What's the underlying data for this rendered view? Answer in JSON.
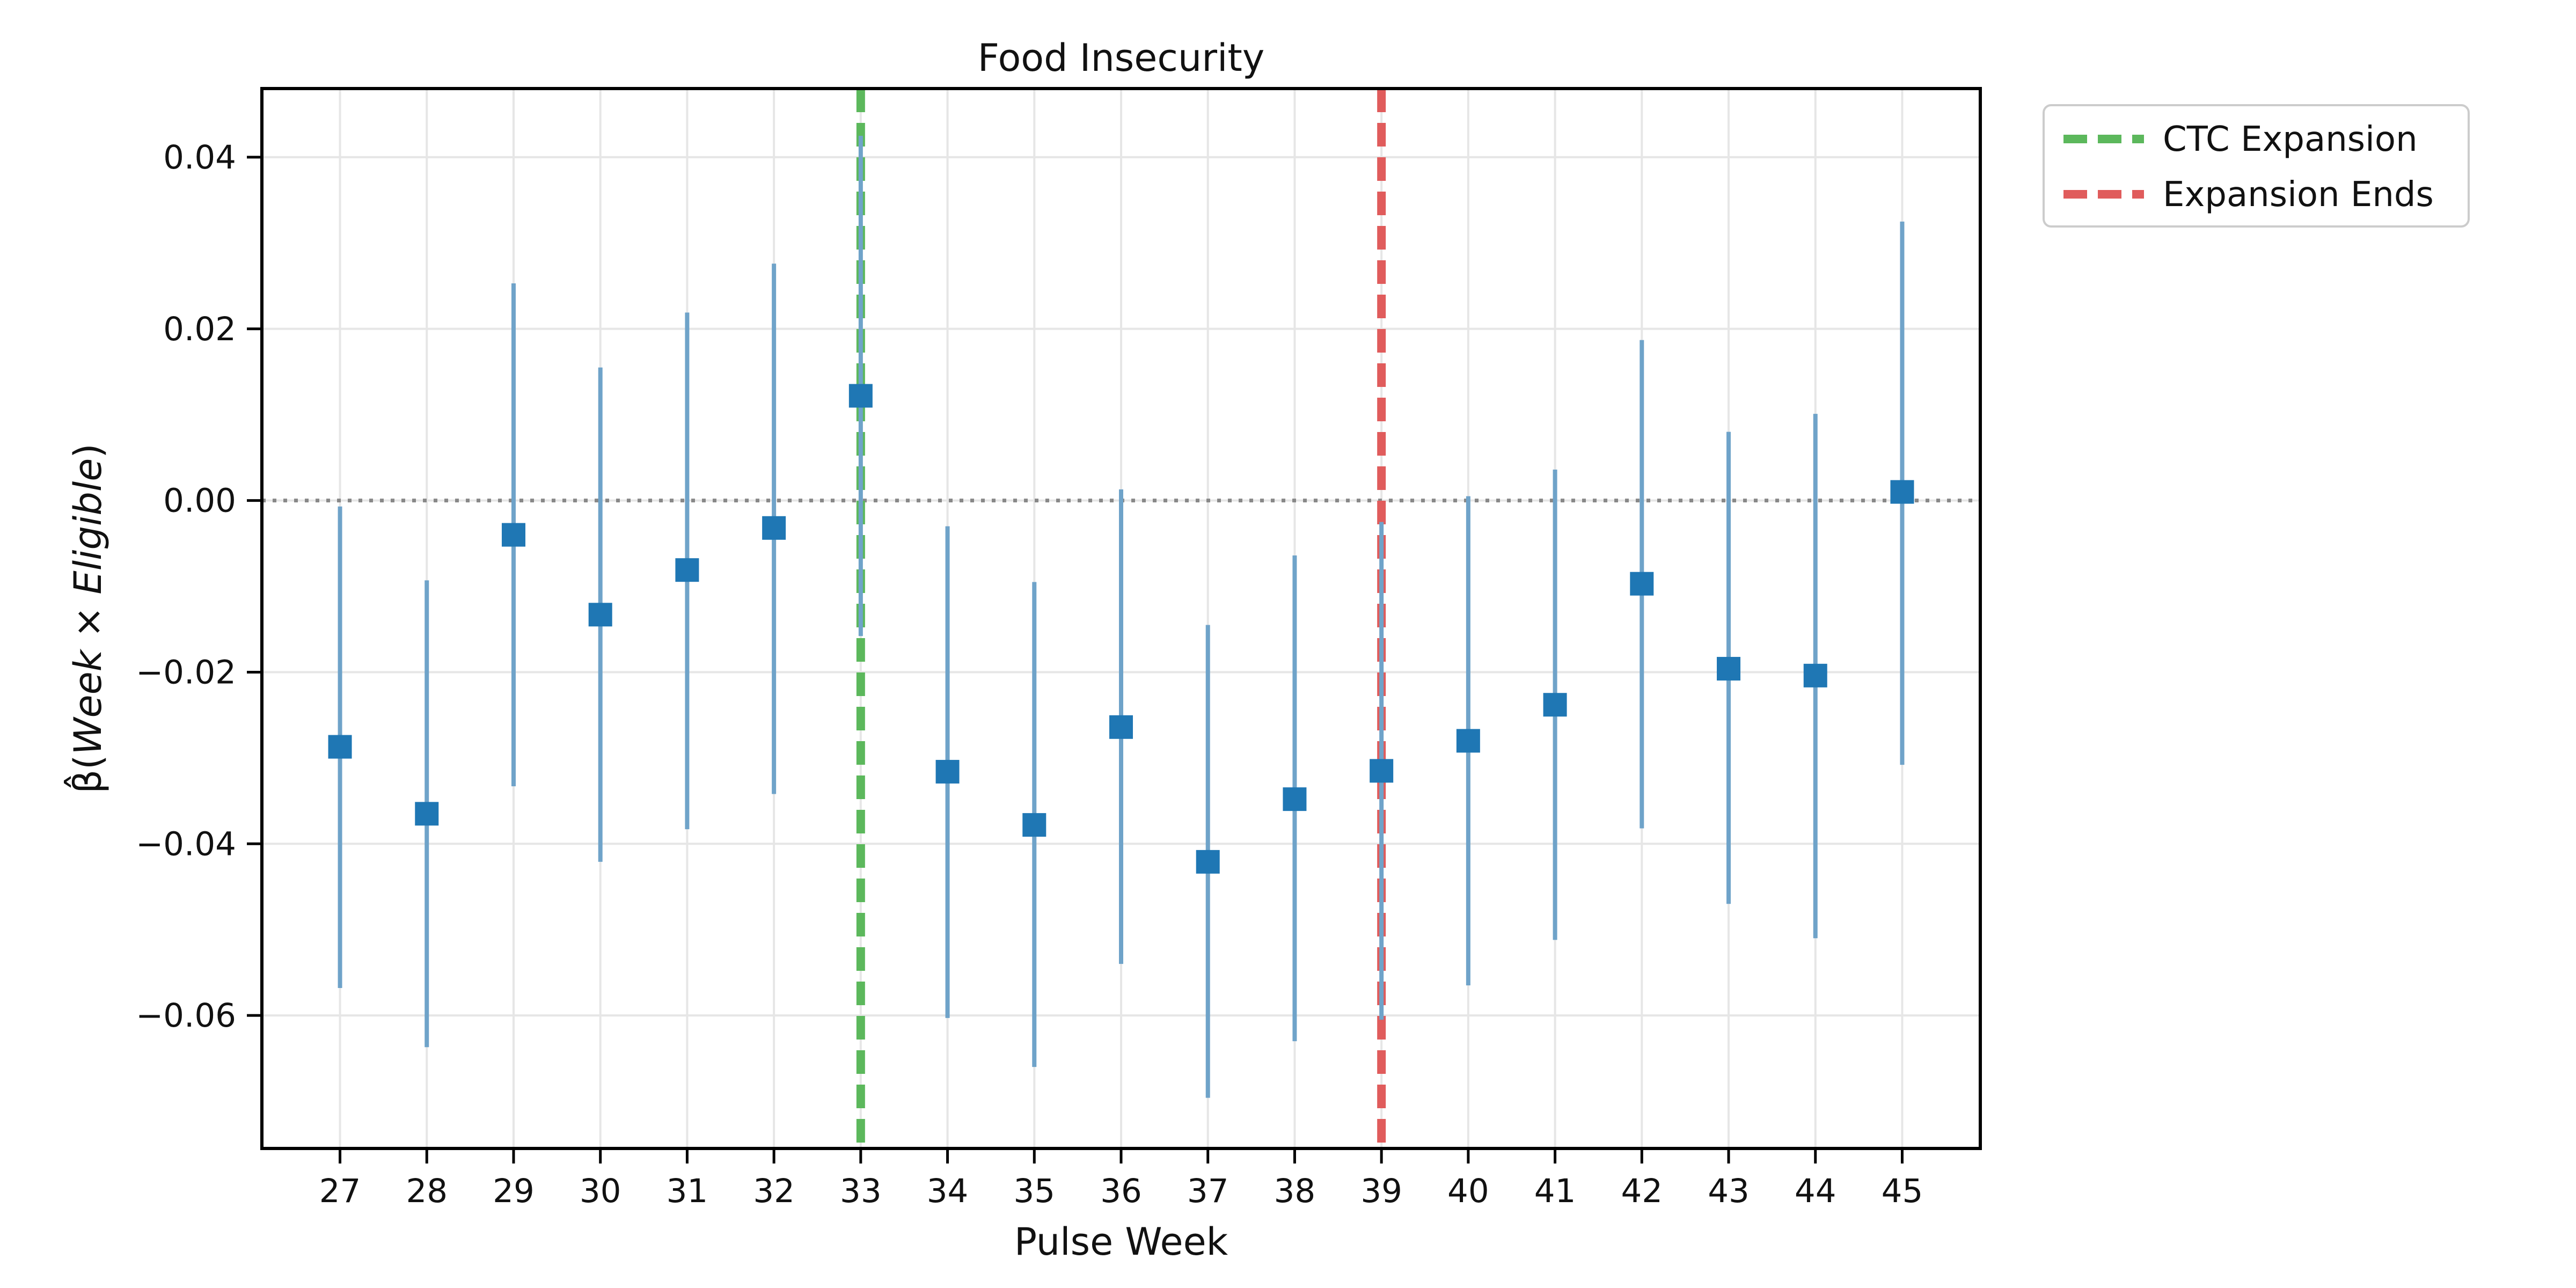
{
  "chart_data": {
    "type": "scatter",
    "title": "Food Insecurity",
    "xlabel": "Pulse Week",
    "ylabel_parts": [
      "β̂(",
      "Week",
      " × ",
      "Eligible",
      ")"
    ],
    "x": [
      27,
      28,
      29,
      30,
      31,
      32,
      33,
      34,
      35,
      36,
      37,
      38,
      39,
      40,
      41,
      42,
      43,
      44,
      45
    ],
    "xlim": [
      26.1,
      45.9
    ],
    "ylim": [
      -0.0755,
      0.048
    ],
    "yticks": [
      -0.06,
      -0.04,
      -0.02,
      0.0,
      0.02,
      0.04
    ],
    "ytick_labels": [
      "−0.06",
      "−0.04",
      "−0.02",
      "0.00",
      "0.02",
      "0.04"
    ],
    "grid": true,
    "reference_line": {
      "y": 0.0,
      "style": "dotted",
      "color": "#888888"
    },
    "series": [
      {
        "marker": "square",
        "color": "#1f77b4",
        "errorbar_color": "#6fa3c9",
        "estimate": [
          -0.0287,
          -0.0365,
          -0.004,
          -0.0133,
          -0.0081,
          -0.0032,
          0.0122,
          -0.0316,
          -0.0378,
          -0.0264,
          -0.0421,
          -0.0348,
          -0.0315,
          -0.028,
          -0.0238,
          -0.0097,
          -0.0196,
          -0.0204,
          0.001
        ],
        "ci_low": [
          -0.0568,
          -0.0637,
          -0.0333,
          -0.0421,
          -0.0383,
          -0.0342,
          -0.0158,
          -0.0603,
          -0.066,
          -0.054,
          -0.0696,
          -0.063,
          -0.0605,
          -0.0565,
          -0.0512,
          -0.0382,
          -0.047,
          -0.051,
          -0.0308
        ],
        "ci_high": [
          -0.0007,
          -0.0093,
          0.0253,
          0.0155,
          0.0219,
          0.0276,
          0.0425,
          -0.003,
          -0.0095,
          0.0013,
          -0.0145,
          -0.0064,
          -0.0025,
          0.0005,
          0.0036,
          0.0187,
          0.008,
          0.0101,
          0.0325
        ]
      }
    ],
    "vlines": [
      {
        "x": 33,
        "label": "CTC Expansion",
        "color": "#5cb85c"
      },
      {
        "x": 39,
        "label": "Expansion Ends",
        "color": "#e05c5c"
      }
    ],
    "legend": {
      "placement": "outside-top-right",
      "entries": [
        "CTC Expansion",
        "Expansion Ends"
      ]
    }
  }
}
